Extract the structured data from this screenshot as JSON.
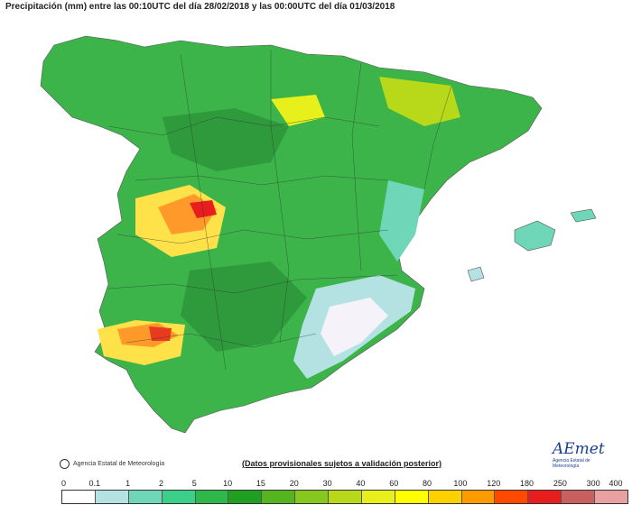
{
  "title": "Precipitación (mm) entre las 00:10UTC del día 28/02/2018 y las 00:00UTC del día 01/03/2018",
  "footer": {
    "agency": "Agencia Estatal de Meteorología",
    "note": "(Datos provisionales sujetos a validación posterior)",
    "logo_name": "AEmet",
    "logo_sub": "Agencia Estatal de Meteorología"
  },
  "legend": {
    "ticks": [
      "0",
      "0.1",
      "1",
      "2",
      "5",
      "10",
      "15",
      "20",
      "30",
      "40",
      "60",
      "80",
      "100",
      "120",
      "180",
      "250",
      "300",
      "400"
    ],
    "colors": [
      "#ffffff",
      "#b4e2e2",
      "#6fd6b8",
      "#3ccf8a",
      "#2fb84a",
      "#20a020",
      "#55b520",
      "#86c81e",
      "#b8d81a",
      "#e8f01c",
      "#ffff00",
      "#ffd000",
      "#ff9a00",
      "#ff4a00",
      "#e81e1e",
      "#c86060",
      "#e8a0a0"
    ]
  },
  "map": {
    "land_color": "#3cb44a",
    "sea_color": "#ffffff"
  }
}
